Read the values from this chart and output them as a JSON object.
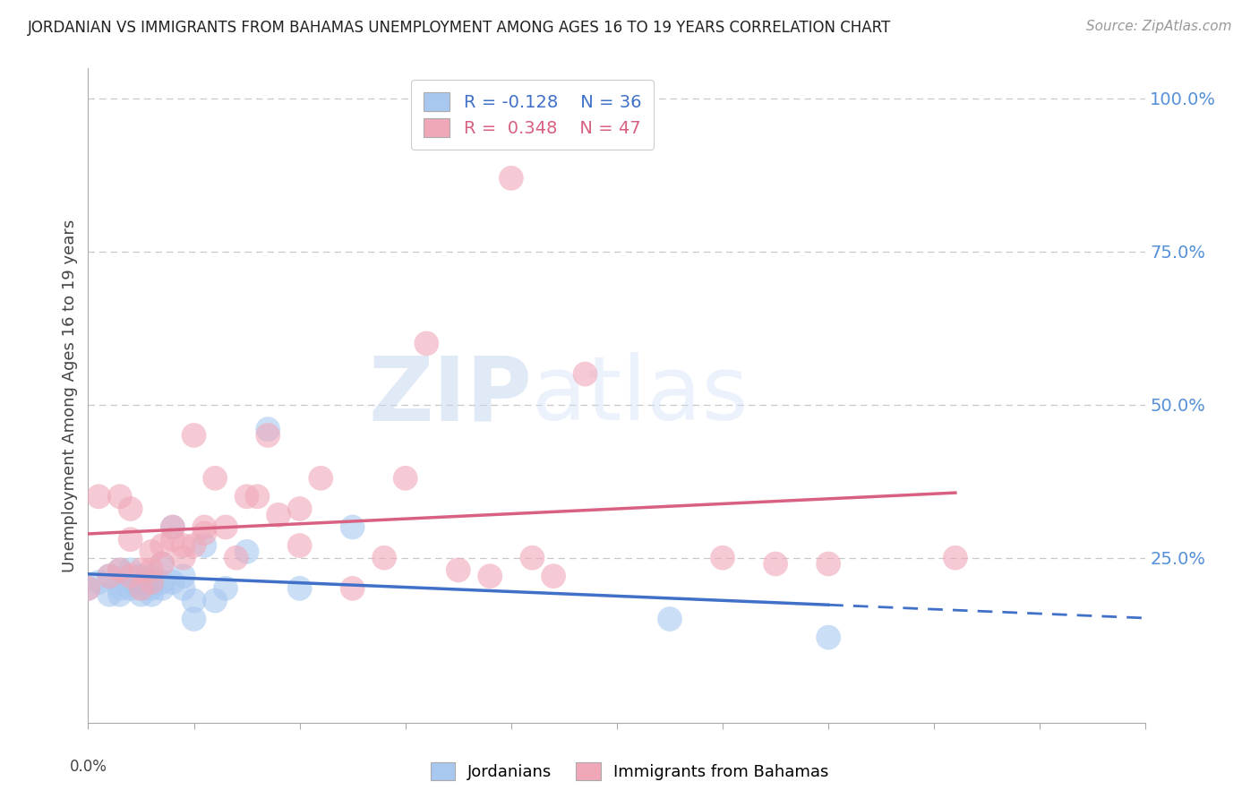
{
  "title": "JORDANIAN VS IMMIGRANTS FROM BAHAMAS UNEMPLOYMENT AMONG AGES 16 TO 19 YEARS CORRELATION CHART",
  "source": "Source: ZipAtlas.com",
  "ylabel": "Unemployment Among Ages 16 to 19 years",
  "ytick_labels": [
    "25.0%",
    "50.0%",
    "75.0%",
    "100.0%"
  ],
  "ytick_values": [
    0.25,
    0.5,
    0.75,
    1.0
  ],
  "xmin": 0.0,
  "xmax": 0.1,
  "ymin": -0.02,
  "ymax": 1.05,
  "legend_r1": "R = -0.128",
  "legend_n1": "N = 36",
  "legend_r2": "R =  0.348",
  "legend_n2": "N = 47",
  "blue_color": "#a8c8f0",
  "pink_color": "#f0a8b8",
  "blue_line_color": "#4070c8",
  "pink_line_color": "#d86080",
  "watermark_zip": "ZIP",
  "watermark_atlas": "atlas",
  "blue_points_x": [
    0.0,
    0.001,
    0.002,
    0.002,
    0.003,
    0.003,
    0.003,
    0.004,
    0.004,
    0.004,
    0.005,
    0.005,
    0.005,
    0.005,
    0.006,
    0.006,
    0.006,
    0.006,
    0.007,
    0.007,
    0.007,
    0.008,
    0.008,
    0.009,
    0.009,
    0.01,
    0.01,
    0.011,
    0.012,
    0.013,
    0.015,
    0.017,
    0.02,
    0.025,
    0.055,
    0.07
  ],
  "blue_points_y": [
    0.2,
    0.21,
    0.19,
    0.22,
    0.2,
    0.23,
    0.19,
    0.21,
    0.2,
    0.23,
    0.19,
    0.21,
    0.2,
    0.22,
    0.2,
    0.22,
    0.19,
    0.21,
    0.21,
    0.2,
    0.24,
    0.21,
    0.3,
    0.22,
    0.2,
    0.18,
    0.15,
    0.27,
    0.18,
    0.2,
    0.26,
    0.46,
    0.2,
    0.3,
    0.15,
    0.12
  ],
  "pink_points_x": [
    0.0,
    0.001,
    0.002,
    0.003,
    0.003,
    0.004,
    0.004,
    0.004,
    0.005,
    0.005,
    0.006,
    0.006,
    0.006,
    0.007,
    0.007,
    0.008,
    0.008,
    0.009,
    0.009,
    0.01,
    0.01,
    0.011,
    0.011,
    0.012,
    0.013,
    0.014,
    0.015,
    0.016,
    0.017,
    0.018,
    0.02,
    0.02,
    0.022,
    0.025,
    0.028,
    0.03,
    0.032,
    0.035,
    0.038,
    0.04,
    0.042,
    0.044,
    0.047,
    0.06,
    0.065,
    0.07,
    0.082
  ],
  "pink_points_y": [
    0.2,
    0.35,
    0.22,
    0.23,
    0.35,
    0.22,
    0.28,
    0.33,
    0.23,
    0.2,
    0.23,
    0.26,
    0.21,
    0.24,
    0.27,
    0.28,
    0.3,
    0.25,
    0.27,
    0.27,
    0.45,
    0.29,
    0.3,
    0.38,
    0.3,
    0.25,
    0.35,
    0.35,
    0.45,
    0.32,
    0.27,
    0.33,
    0.38,
    0.2,
    0.25,
    0.38,
    0.6,
    0.23,
    0.22,
    0.87,
    0.25,
    0.22,
    0.55,
    0.25,
    0.24,
    0.24,
    0.25
  ]
}
